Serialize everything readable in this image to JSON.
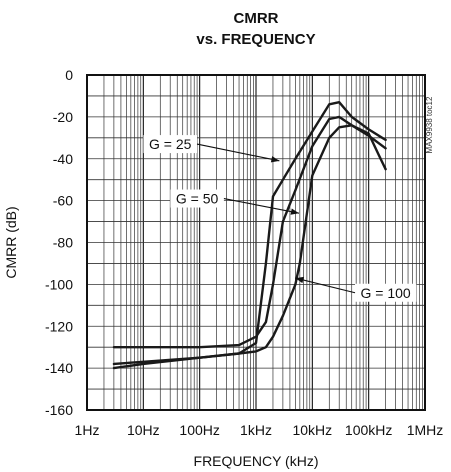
{
  "chart_data": {
    "type": "line",
    "title": [
      "CMRR",
      "vs. FREQUENCY"
    ],
    "xlabel": "FREQUENCY (kHz)",
    "ylabel": "CMRR (dB)",
    "x_scale": "log",
    "xlim_hz": [
      1,
      1000000
    ],
    "ylim": [
      -160,
      0
    ],
    "x_ticks": [
      {
        "value": 1,
        "label": "1Hz"
      },
      {
        "value": 10,
        "label": "10Hz"
      },
      {
        "value": 100,
        "label": "100Hz"
      },
      {
        "value": 1000,
        "label": "1kHz"
      },
      {
        "value": 10000,
        "label": "10kHz"
      },
      {
        "value": 100000,
        "label": "100kHz"
      },
      {
        "value": 1000000,
        "label": "1MHz"
      }
    ],
    "y_ticks": [
      0,
      -20,
      -40,
      -60,
      -80,
      -100,
      -120,
      -140,
      -160
    ],
    "grid": true,
    "side_label": "MAX9938 toc12",
    "series": [
      {
        "name": "G = 25",
        "x": [
          3,
          10,
          100,
          500,
          1000,
          1500,
          2000,
          3000,
          5000,
          10000,
          20000,
          30000,
          50000,
          100000,
          200000
        ],
        "y": [
          -138,
          -137,
          -135,
          -133,
          -128,
          -90,
          -58,
          -50,
          -40,
          -27,
          -14,
          -13,
          -20,
          -26,
          -31
        ]
      },
      {
        "name": "G = 50",
        "x": [
          3,
          10,
          100,
          500,
          1000,
          1500,
          2000,
          3000,
          5000,
          10000,
          20000,
          30000,
          50000,
          100000,
          200000
        ],
        "y": [
          -130,
          -130,
          -130,
          -129,
          -125,
          -118,
          -100,
          -70,
          -55,
          -34,
          -21,
          -20,
          -24,
          -29,
          -35
        ]
      },
      {
        "name": "G = 100",
        "x": [
          3,
          10,
          100,
          500,
          1000,
          1500,
          2000,
          3000,
          5000,
          6000,
          10000,
          20000,
          30000,
          50000,
          100000,
          150000,
          200000
        ],
        "y": [
          -140,
          -138,
          -135,
          -133,
          -132,
          -130,
          -125,
          -115,
          -100,
          -90,
          -48,
          -30,
          -25,
          -24,
          -28,
          -38,
          -45
        ]
      }
    ],
    "annotations": [
      {
        "label": "G = 25",
        "x": 30,
        "y": -33,
        "target_x": 2600,
        "target_y": -41
      },
      {
        "label": "G = 50",
        "x": 90,
        "y": -59,
        "target_x": 5800,
        "target_y": -66
      },
      {
        "label": "G = 100",
        "x": 200000,
        "y": -104,
        "target_x": 5000,
        "target_y": -97
      }
    ]
  }
}
